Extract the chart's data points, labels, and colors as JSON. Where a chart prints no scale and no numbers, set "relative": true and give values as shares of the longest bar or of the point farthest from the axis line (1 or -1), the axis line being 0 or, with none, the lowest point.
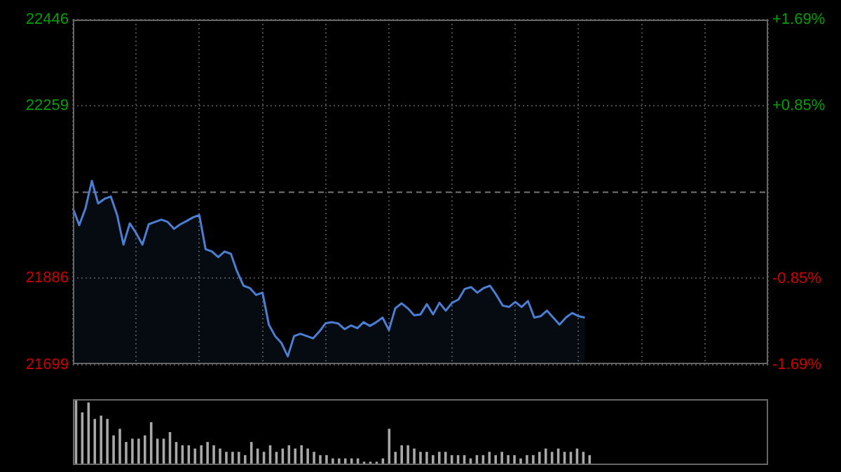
{
  "chart_data": [
    {
      "type": "area",
      "color": "#4a7fd4",
      "categories": [
        null,
        null,
        null,
        null,
        null,
        null,
        null,
        null,
        null,
        null,
        null,
        null,
        null,
        null,
        null,
        null,
        null,
        null,
        null,
        null,
        null,
        null,
        null,
        null,
        null,
        null,
        null,
        null,
        null,
        null,
        null,
        null,
        null,
        null,
        null,
        null,
        null,
        null,
        null,
        null,
        null,
        null,
        null,
        null,
        null,
        null,
        null,
        null,
        null,
        null,
        null,
        null,
        null,
        null,
        null,
        null,
        null,
        null,
        null,
        null,
        null,
        null,
        null,
        null,
        null,
        null,
        null,
        null,
        null,
        null,
        null,
        null,
        null,
        null,
        null,
        null,
        null,
        null,
        null,
        null,
        null,
        null,
        null,
        null,
        null,
        null,
        null,
        null,
        null,
        null,
        null,
        null,
        null,
        null,
        null,
        null,
        null,
        null,
        null,
        null,
        null,
        null,
        null,
        null,
        null,
        null,
        null,
        null,
        null,
        null,
        null
      ],
      "values": [
        22038,
        22001,
        22038,
        22097,
        22048,
        22058,
        22063,
        22023,
        21959,
        22005,
        21984,
        21959,
        22003,
        22008,
        22013,
        22008,
        21993,
        22003,
        22010,
        22018,
        22023,
        21949,
        21944,
        21932,
        21944,
        21939,
        21900,
        21870,
        21865,
        21850,
        21855,
        21786,
        21761,
        21746,
        21717,
        21761,
        21766,
        21761,
        21756,
        21771,
        21789,
        21791,
        21788,
        21776,
        21784,
        21778,
        21791,
        21783,
        21791,
        21801,
        21774,
        21821,
        21832,
        21821,
        21806,
        21808,
        21830,
        21808,
        21833,
        21816,
        21833,
        21840,
        21863,
        21867,
        21855,
        21865,
        21870,
        21850,
        21827,
        21824,
        21835,
        21824,
        21837,
        21801,
        21804,
        21816,
        21801,
        21786,
        21801,
        21811,
        21804,
        21801,
        null,
        null,
        null,
        null,
        null,
        null,
        null,
        null,
        null,
        null,
        null,
        null,
        null,
        null,
        null,
        null,
        null,
        null,
        null,
        null,
        null,
        null,
        null,
        null,
        null,
        null,
        null,
        null,
        null
      ],
      "ylim": [
        21699,
        22446
      ],
      "yticks": [
        21699,
        21886,
        22259,
        22446
      ],
      "y2lim": [
        -1.69,
        1.69
      ],
      "y2ticks": [
        {
          "value": -1.69,
          "label": "-1.69%"
        },
        {
          "value": -0.85,
          "label": "-0.85%"
        },
        {
          "value": 0.85,
          "label": "+0.85%"
        },
        {
          "value": 1.69,
          "label": "+1.69%"
        }
      ],
      "ref_lines": [
        {
          "axis": "y",
          "value": 22072.5,
          "line_style": "dashed",
          "color": "#777777"
        }
      ],
      "grid": true,
      "tick_labels": "y"
    },
    {
      "type": "bar",
      "relative": true,
      "color": "#a8a8a8",
      "categories": [
        null,
        null,
        null,
        null,
        null,
        null,
        null,
        null,
        null,
        null,
        null,
        null,
        null,
        null,
        null,
        null,
        null,
        null,
        null,
        null,
        null,
        null,
        null,
        null,
        null,
        null,
        null,
        null,
        null,
        null,
        null,
        null,
        null,
        null,
        null,
        null,
        null,
        null,
        null,
        null,
        null,
        null,
        null,
        null,
        null,
        null,
        null,
        null,
        null,
        null,
        null,
        null,
        null,
        null,
        null,
        null,
        null,
        null,
        null,
        null,
        null,
        null,
        null,
        null,
        null,
        null,
        null,
        null,
        null,
        null,
        null,
        null,
        null,
        null,
        null,
        null,
        null,
        null,
        null,
        null,
        null,
        null,
        null,
        null,
        null,
        null,
        null,
        null,
        null,
        null,
        null,
        null,
        null,
        null,
        null,
        null,
        null,
        null,
        null,
        null,
        null,
        null,
        null,
        null,
        null,
        null,
        null,
        null,
        null,
        null,
        null
      ],
      "values": [
        1,
        0.8,
        0.95,
        0.7,
        0.75,
        0.7,
        0.45,
        0.55,
        0.35,
        0.4,
        0.4,
        0.45,
        0.65,
        0.4,
        0.4,
        0.5,
        0.35,
        0.3,
        0.3,
        0.25,
        0.3,
        0.35,
        0.3,
        0.25,
        0.2,
        0.2,
        0.2,
        0.15,
        0.35,
        0.25,
        0.2,
        0.3,
        0.2,
        0.25,
        0.3,
        0.25,
        0.3,
        0.25,
        0.2,
        0.15,
        0.15,
        0.1,
        0.1,
        0.1,
        0.1,
        0.1,
        0.05,
        0.05,
        0.05,
        0.1,
        0.55,
        0.2,
        0.3,
        0.3,
        0.25,
        0.2,
        0.2,
        0.15,
        0.2,
        0.2,
        0.15,
        0.15,
        0.15,
        0.1,
        0.15,
        0.15,
        0.2,
        0.15,
        0.2,
        0.15,
        0.15,
        0.1,
        0.15,
        0.15,
        0.2,
        0.25,
        0.2,
        0.25,
        0.2,
        0.2,
        0.25,
        0.2,
        0.15,
        null,
        null,
        null,
        null,
        null,
        null,
        null,
        null,
        null,
        null,
        null,
        null,
        null,
        null,
        null,
        null,
        null,
        null,
        null,
        null,
        null,
        null,
        null,
        null,
        null,
        null,
        null,
        null
      ],
      "tick_labels": false
    }
  ]
}
